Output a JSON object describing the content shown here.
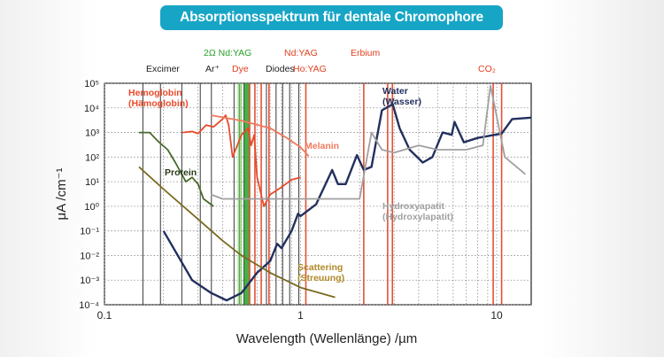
{
  "header": {
    "title": "Absorptionsspektrum für dentale Chromophore"
  },
  "chart_data": {
    "type": "line",
    "ylabel": "μA /cm⁻¹",
    "xlabel": "Wavelength (Wellenlänge) /µm",
    "xscale": "log",
    "yscale": "log",
    "xlim": [
      0.1,
      15
    ],
    "ylim": [
      0.0001,
      100000
    ],
    "x_ticks": [
      "0.1",
      "1",
      "10"
    ],
    "y_ticks": [
      "10⁻⁴",
      "10⁻³",
      "10⁻²",
      "10⁻¹",
      "10⁰",
      "10¹",
      "10²",
      "10³",
      "10⁴",
      "10⁵"
    ],
    "lasers": [
      {
        "name": "Excimer",
        "color": "#222222",
        "wavelengths": [
          0.157,
          0.193,
          0.248,
          0.308,
          0.351
        ]
      },
      {
        "name": "Ar⁺",
        "color": "#222222",
        "wavelengths": [
          0.4579,
          0.488,
          0.5145
        ]
      },
      {
        "name": "2Ω Nd:YAG",
        "color": "#2aa02a",
        "wavelengths": [
          0.532
        ]
      },
      {
        "name": "Dye",
        "color": "#e04020",
        "wavelengths": [
          0.55,
          0.585,
          0.63,
          0.69
        ]
      },
      {
        "name": "Diodes",
        "color": "#222222",
        "wavelengths": [
          0.67,
          0.75,
          0.81,
          0.88,
          0.98
        ]
      },
      {
        "name": "Nd:YAG",
        "color": "#e04020",
        "wavelengths": [
          1.064
        ]
      },
      {
        "name": "Ho:YAG",
        "color": "#e04020",
        "wavelengths": [
          2.1
        ]
      },
      {
        "name": "Erbium",
        "color": "#e04020",
        "wavelengths": [
          2.78,
          2.94
        ]
      },
      {
        "name": "CO₂",
        "color": "#e04020",
        "wavelengths": [
          9.6,
          10.6
        ]
      }
    ],
    "series": [
      {
        "name": "Water",
        "name2": "(Wasser)",
        "color": "#22305e",
        "points": [
          [
            0.2,
            0.1
          ],
          [
            0.28,
            0.001
          ],
          [
            0.35,
            0.0003
          ],
          [
            0.42,
            0.00015
          ],
          [
            0.5,
            0.0003
          ],
          [
            0.6,
            0.002
          ],
          [
            0.7,
            0.006
          ],
          [
            0.76,
            0.03
          ],
          [
            0.8,
            0.02
          ],
          [
            0.9,
            0.1
          ],
          [
            0.97,
            0.5
          ],
          [
            1.0,
            0.4
          ],
          [
            1.2,
            1.2
          ],
          [
            1.45,
            30
          ],
          [
            1.55,
            8
          ],
          [
            1.7,
            8
          ],
          [
            1.94,
            120
          ],
          [
            2.1,
            30
          ],
          [
            2.3,
            40
          ],
          [
            2.6,
            8000
          ],
          [
            2.95,
            14000
          ],
          [
            3.2,
            1500
          ],
          [
            3.6,
            200
          ],
          [
            4.2,
            60
          ],
          [
            4.7,
            100
          ],
          [
            5.3,
            1000
          ],
          [
            5.9,
            800
          ],
          [
            6.1,
            2700
          ],
          [
            6.8,
            400
          ],
          [
            8.0,
            600
          ],
          [
            10.6,
            900
          ],
          [
            12,
            3500
          ],
          [
            15,
            4000
          ]
        ]
      },
      {
        "name": "Hemoglobin",
        "name2": "(Hämoglobin)",
        "color": "#ea4a2a",
        "points": [
          [
            0.25,
            1000
          ],
          [
            0.28,
            1100
          ],
          [
            0.3,
            900
          ],
          [
            0.33,
            2000
          ],
          [
            0.36,
            1700
          ],
          [
            0.4,
            3500
          ],
          [
            0.415,
            5000
          ],
          [
            0.43,
            2000
          ],
          [
            0.45,
            100
          ],
          [
            0.5,
            800
          ],
          [
            0.54,
            1500
          ],
          [
            0.56,
            300
          ],
          [
            0.58,
            800
          ],
          [
            0.6,
            15
          ],
          [
            0.65,
            1
          ],
          [
            0.7,
            3
          ],
          [
            0.8,
            6
          ],
          [
            0.9,
            12
          ],
          [
            1.0,
            15
          ]
        ]
      },
      {
        "name": "Melanin",
        "name2": "",
        "color": "#f07a5e",
        "points": [
          [
            0.35,
            5000
          ],
          [
            0.5,
            3000
          ],
          [
            0.7,
            1500
          ],
          [
            0.85,
            600
          ],
          [
            1.0,
            250
          ],
          [
            1.1,
            110
          ]
        ]
      },
      {
        "name": "Protein",
        "name2": "",
        "color": "#4a6a2a",
        "points": [
          [
            0.15,
            1000
          ],
          [
            0.17,
            1000
          ],
          [
            0.19,
            400
          ],
          [
            0.21,
            200
          ],
          [
            0.23,
            60
          ],
          [
            0.26,
            10
          ],
          [
            0.28,
            15
          ],
          [
            0.3,
            8
          ],
          [
            0.32,
            2
          ],
          [
            0.36,
            1
          ]
        ]
      },
      {
        "name": "Hydroxyapatit",
        "name2": "(Hydroxylapatit)",
        "color": "#a0a0a0",
        "points": [
          [
            0.35,
            3
          ],
          [
            0.4,
            2
          ],
          [
            0.6,
            2
          ],
          [
            1.0,
            2
          ],
          [
            2.0,
            2
          ],
          [
            2.3,
            1000
          ],
          [
            2.6,
            200
          ],
          [
            3.0,
            150
          ],
          [
            4.0,
            300
          ],
          [
            5.0,
            200
          ],
          [
            7.0,
            200
          ],
          [
            8.5,
            300
          ],
          [
            9.3,
            80000
          ],
          [
            9.8,
            10000
          ],
          [
            11.0,
            100
          ],
          [
            14.0,
            20
          ]
        ]
      },
      {
        "name": "Scattering",
        "name2": "(Streuung)",
        "color": "#7a6a20",
        "points": [
          [
            0.15,
            40
          ],
          [
            0.2,
            5
          ],
          [
            0.3,
            0.3
          ],
          [
            0.4,
            0.04
          ],
          [
            0.5,
            0.01
          ],
          [
            0.7,
            0.002
          ],
          [
            1.0,
            0.0005
          ],
          [
            1.5,
            0.0002
          ]
        ]
      }
    ]
  }
}
